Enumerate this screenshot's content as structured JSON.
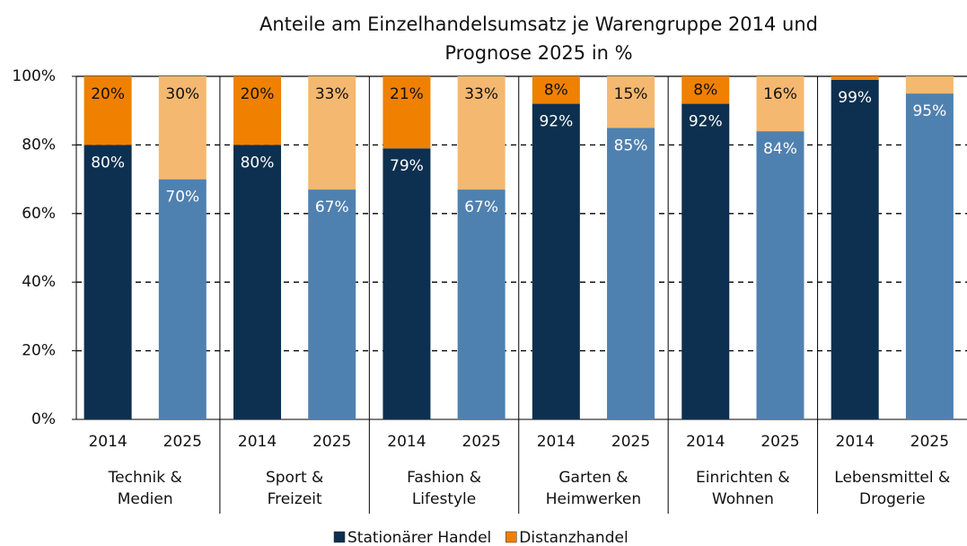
{
  "chart_data": {
    "type": "stacked_bar",
    "title": [
      "Anteile am Einzelhandelsumsatz je Warengruppe 2014 und",
      "Prognose 2025 in %"
    ],
    "categories": [
      "2014",
      "2025",
      "2014",
      "2025",
      "2014",
      "2025",
      "2014",
      "2025",
      "2014",
      "2025",
      "2014",
      "2025"
    ],
    "groups": [
      [
        "Technik &",
        "Medien"
      ],
      [
        "Sport &",
        "Freizeit"
      ],
      [
        "Fashion &",
        "Lifestyle"
      ],
      [
        "Garten &",
        "Heimwerken"
      ],
      [
        "Einrichten &",
        "Wohnen"
      ],
      [
        "Lebensmittel &",
        "Drogerie"
      ]
    ],
    "series": [
      {
        "name": "Stationärer Handel",
        "color": "#0d3050",
        "colors": [
          "#0d3050",
          "#4f81b0",
          "#0d3050",
          "#4f81b0",
          "#0d3050",
          "#4f81b0",
          "#0d3050",
          "#4f81b0",
          "#0d3050",
          "#4f81b0",
          "#0d3050",
          "#4f81b0"
        ],
        "values": [
          80,
          70,
          80,
          67,
          79,
          67,
          92,
          85,
          92,
          84,
          99,
          95
        ],
        "value_labels": [
          "80%",
          "70%",
          "80%",
          "67%",
          "79%",
          "67%",
          "92%",
          "85%",
          "92%",
          "84%",
          "99%",
          "95%"
        ]
      },
      {
        "name": "Distanzhandel",
        "color": "#f08000",
        "colors": [
          "#f08000",
          "#f5b870",
          "#f08000",
          "#f5b870",
          "#f08000",
          "#f5b870",
          "#f08000",
          "#f5b870",
          "#f08000",
          "#f5b870",
          "#f08000",
          "#f5b870"
        ],
        "values": [
          20,
          30,
          20,
          33,
          21,
          33,
          8,
          15,
          8,
          16,
          1,
          5
        ],
        "value_labels": [
          "20%",
          "30%",
          "20%",
          "33%",
          "21%",
          "33%",
          "8%",
          "15%",
          "8%",
          "16%",
          null,
          null
        ]
      }
    ],
    "ylim": [
      0,
      100
    ],
    "yticks": [
      {
        "value": 0,
        "label": "0%"
      },
      {
        "value": 20,
        "label": "20%"
      },
      {
        "value": 40,
        "label": "40%"
      },
      {
        "value": 60,
        "label": "60%"
      },
      {
        "value": 80,
        "label": "80%"
      },
      {
        "value": 100,
        "label": "100%"
      }
    ],
    "grid": true,
    "legend": "bottom"
  }
}
